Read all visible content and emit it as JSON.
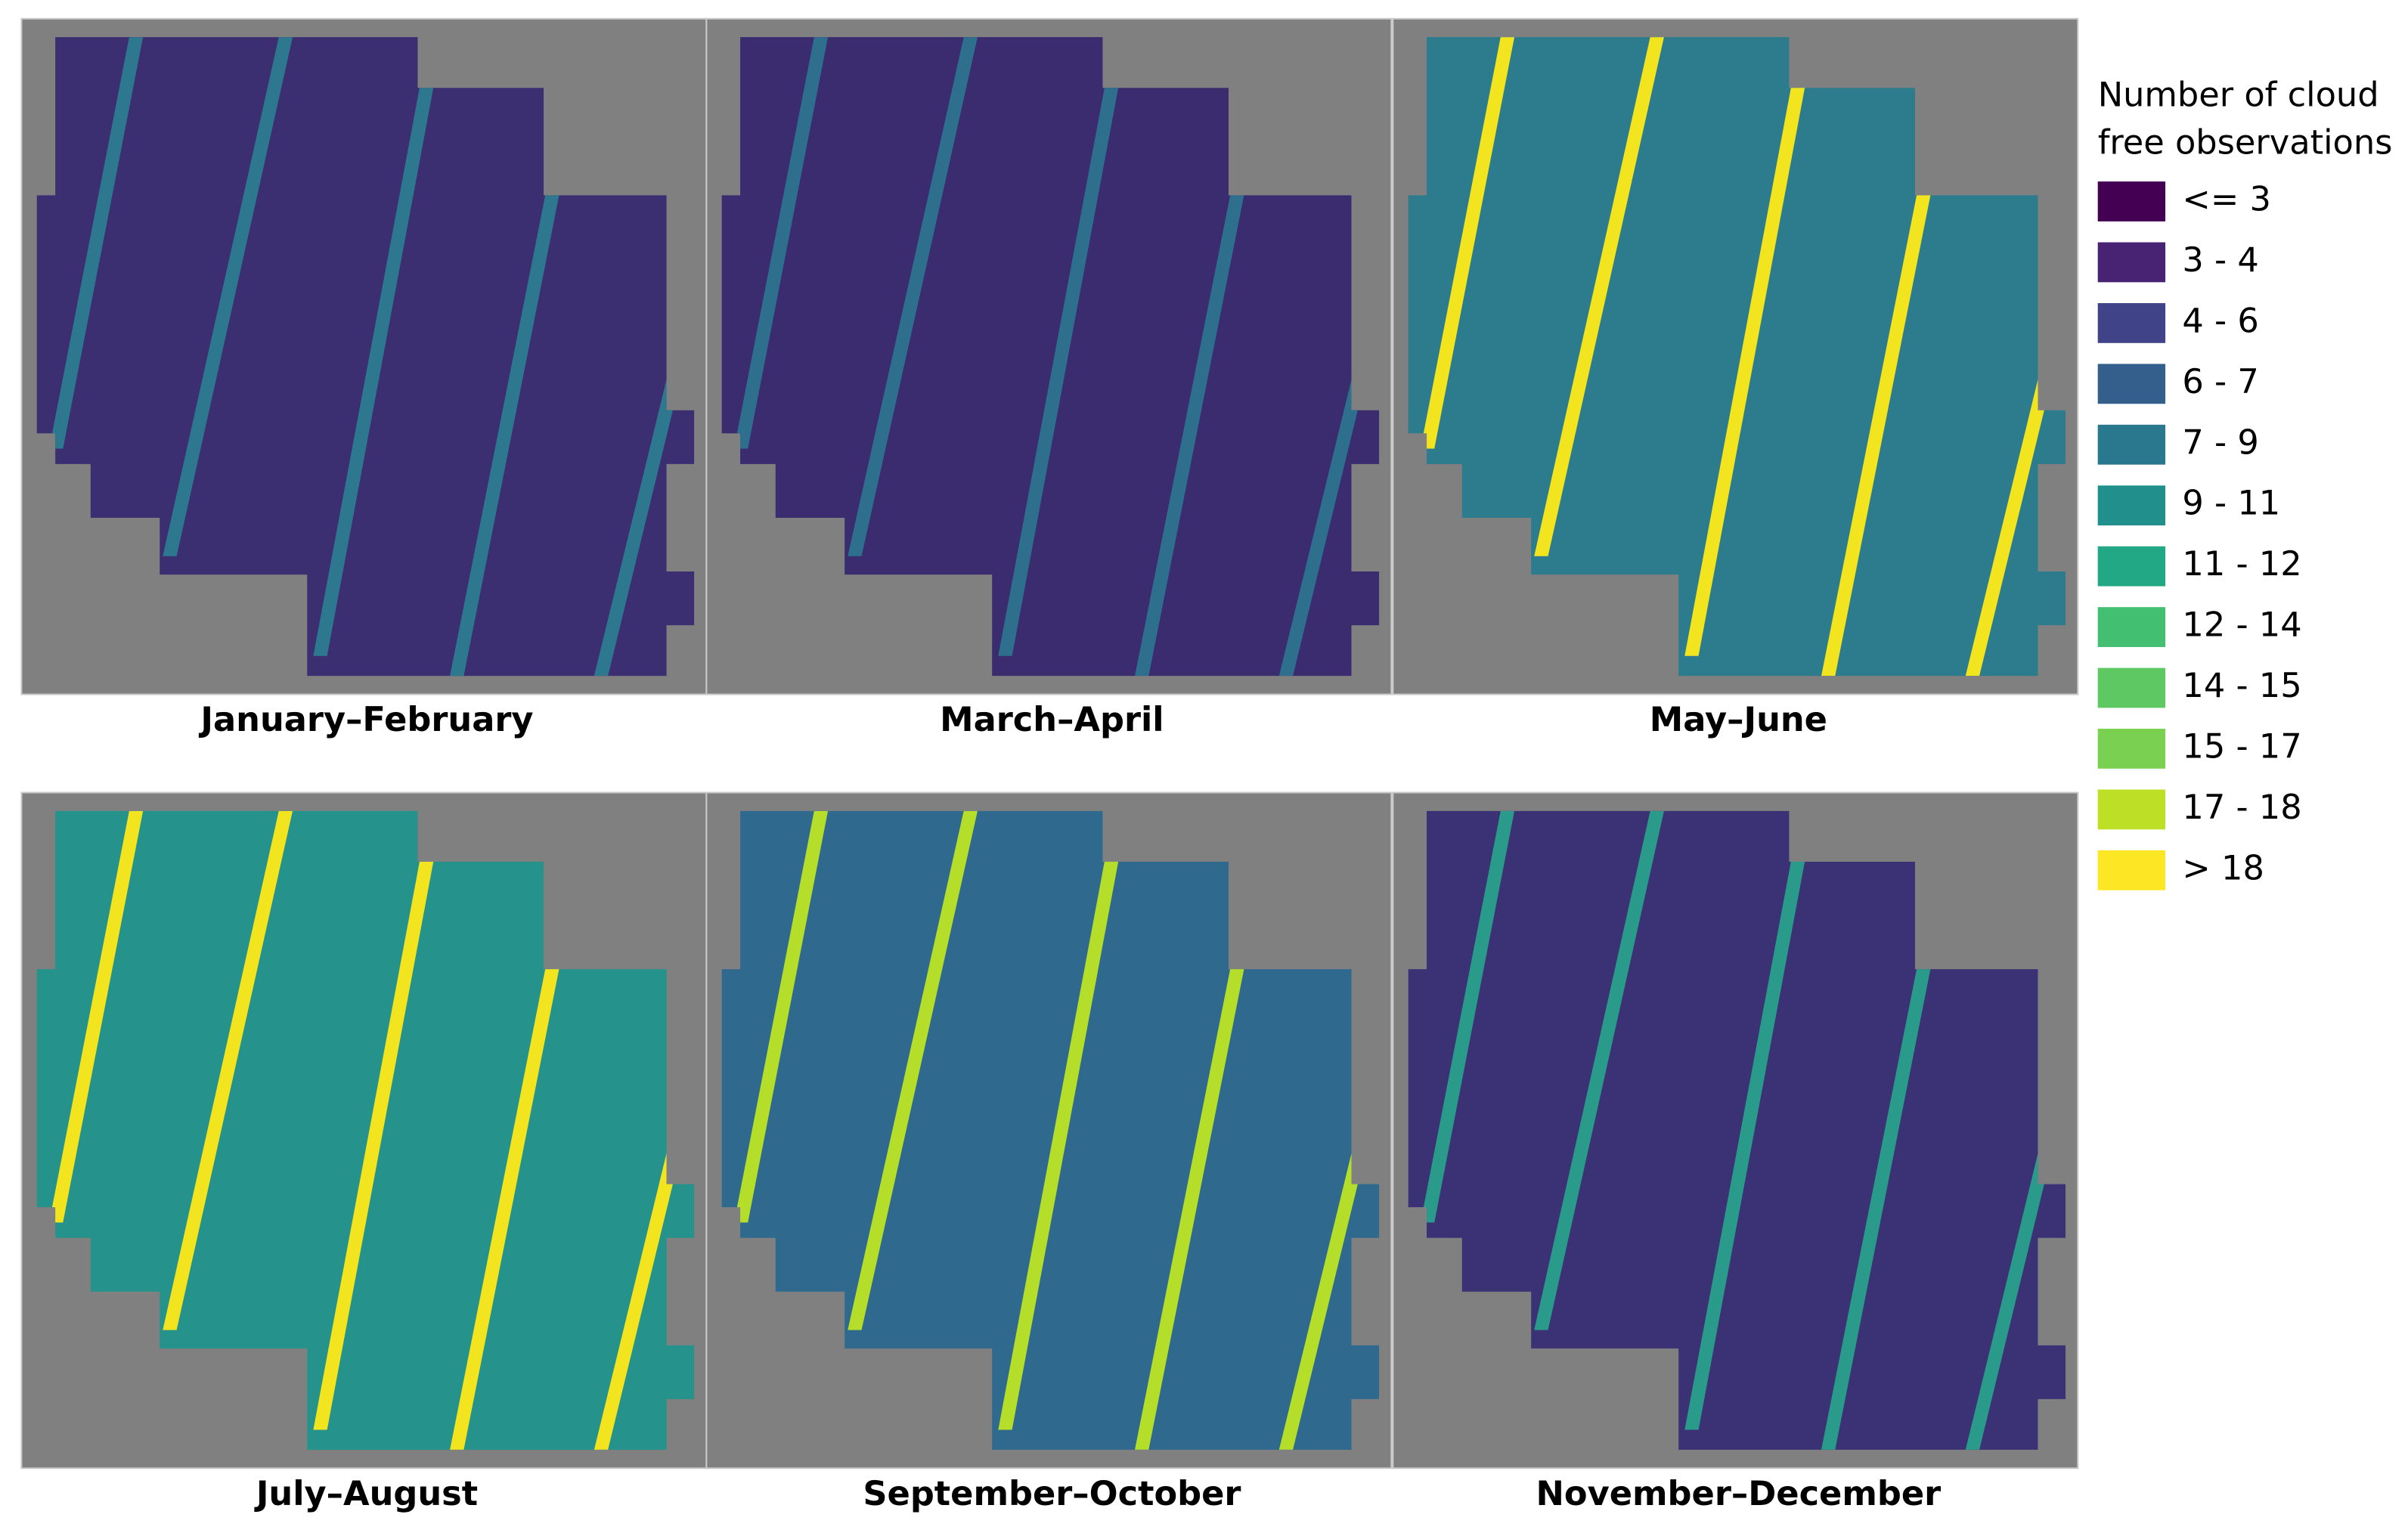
{
  "panels": [
    {
      "title": "January–February",
      "base": "#3b2f72",
      "stripe": "#2d788e"
    },
    {
      "title": "March–April",
      "base": "#3a2c6e",
      "stripe": "#2e6f8e"
    },
    {
      "title": "May–June",
      "base": "#2d7c8e",
      "stripe": "#f2e41f"
    },
    {
      "title": "July–August",
      "base": "#25928b",
      "stripe": "#f2e41f"
    },
    {
      "title": "September–October",
      "base": "#2f6a8e",
      "stripe": "#b5de2b"
    },
    {
      "title": "November–December",
      "base": "#3b3276",
      "stripe": "#2a9a8a"
    }
  ],
  "legend": {
    "title_lines": [
      "Number of cloud",
      "free observations"
    ],
    "items": [
      {
        "label": "<= 3",
        "color": "#440154"
      },
      {
        "label": "3 - 4",
        "color": "#482374"
      },
      {
        "label": "4 - 6",
        "color": "#404387"
      },
      {
        "label": "6 - 7",
        "color": "#345f8d"
      },
      {
        "label": "7 - 9",
        "color": "#2a788e"
      },
      {
        "label": "9 - 11",
        "color": "#21908d"
      },
      {
        "label": "11 - 12",
        "color": "#22a884"
      },
      {
        "label": "12 - 14",
        "color": "#43bf71"
      },
      {
        "label": "14 - 15",
        "color": "#5ec962"
      },
      {
        "label": "15 - 17",
        "color": "#7ad151"
      },
      {
        "label": "17 - 18",
        "color": "#bddf26"
      },
      {
        "label": "> 18",
        "color": "#fde725"
      }
    ]
  }
}
